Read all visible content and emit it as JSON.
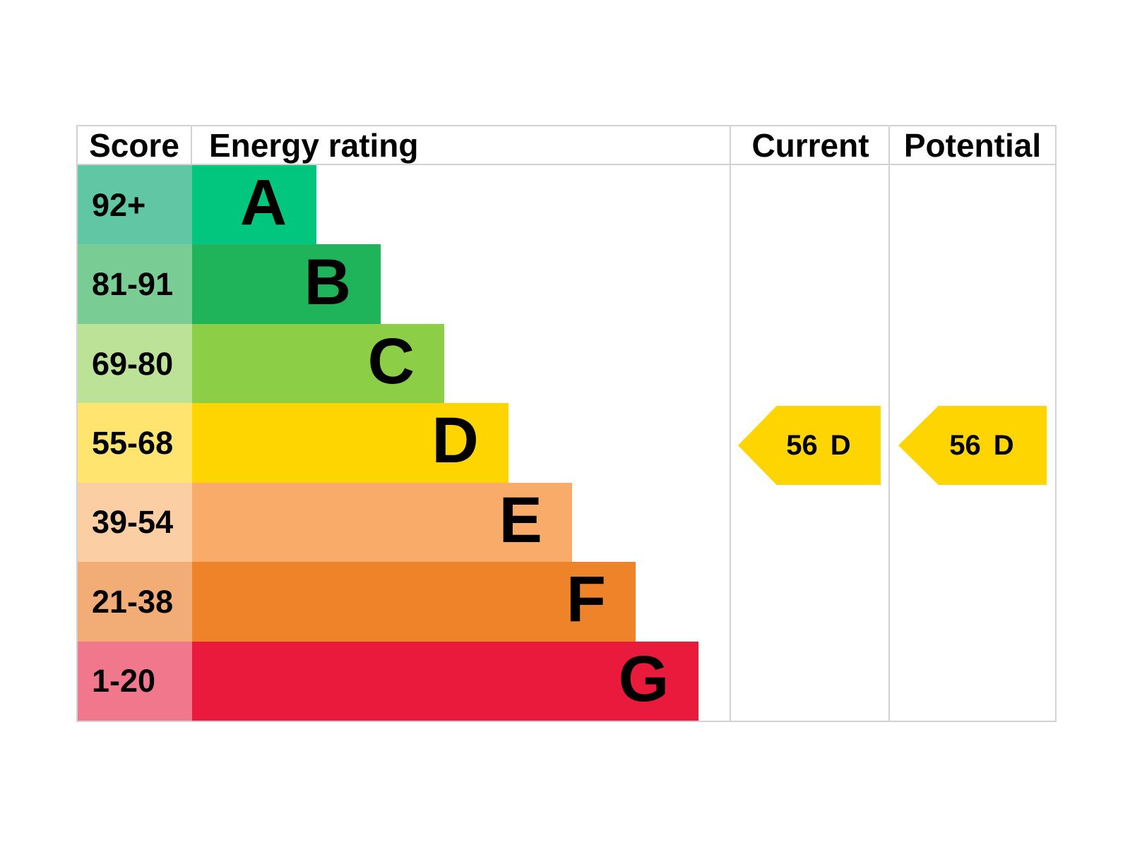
{
  "header": {
    "score": "Score",
    "energy_rating": "Energy rating",
    "current": "Current",
    "potential": "Potential"
  },
  "chart_data": {
    "type": "bar",
    "orientation": "horizontal",
    "description": "EPC energy efficiency rating chart",
    "columns": [
      "Score",
      "Energy rating",
      "Current",
      "Potential"
    ],
    "bands": [
      {
        "score_range": "92+",
        "letter": "A",
        "bar_color": "#02c57e",
        "score_cell_color": "#61c6a3",
        "bar_length_pct": 23.1
      },
      {
        "score_range": "81-91",
        "letter": "B",
        "bar_color": "#1fb45a",
        "score_cell_color": "#7acc95",
        "bar_length_pct": 35.0
      },
      {
        "score_range": "69-80",
        "letter": "C",
        "bar_color": "#8cce45",
        "score_cell_color": "#bbe297",
        "bar_length_pct": 46.8
      },
      {
        "score_range": "55-68",
        "letter": "D",
        "bar_color": "#ffd500",
        "score_cell_color": "#ffe570",
        "bar_length_pct": 58.7
      },
      {
        "score_range": "39-54",
        "letter": "E",
        "bar_color": "#f9ab6a",
        "score_cell_color": "#fccea3",
        "bar_length_pct": 70.5
      },
      {
        "score_range": "21-38",
        "letter": "F",
        "bar_color": "#ee8329",
        "score_cell_color": "#f2ac76",
        "bar_length_pct": 82.3
      },
      {
        "score_range": "1-20",
        "letter": "G",
        "bar_color": "#e91a3c",
        "score_cell_color": "#f0778c",
        "bar_length_pct": 94.0
      }
    ],
    "current": {
      "value": "56",
      "letter": "D",
      "arrow_color": "#ffd500"
    },
    "potential": {
      "value": "56",
      "letter": "D",
      "arrow_color": "#ffd500"
    }
  }
}
